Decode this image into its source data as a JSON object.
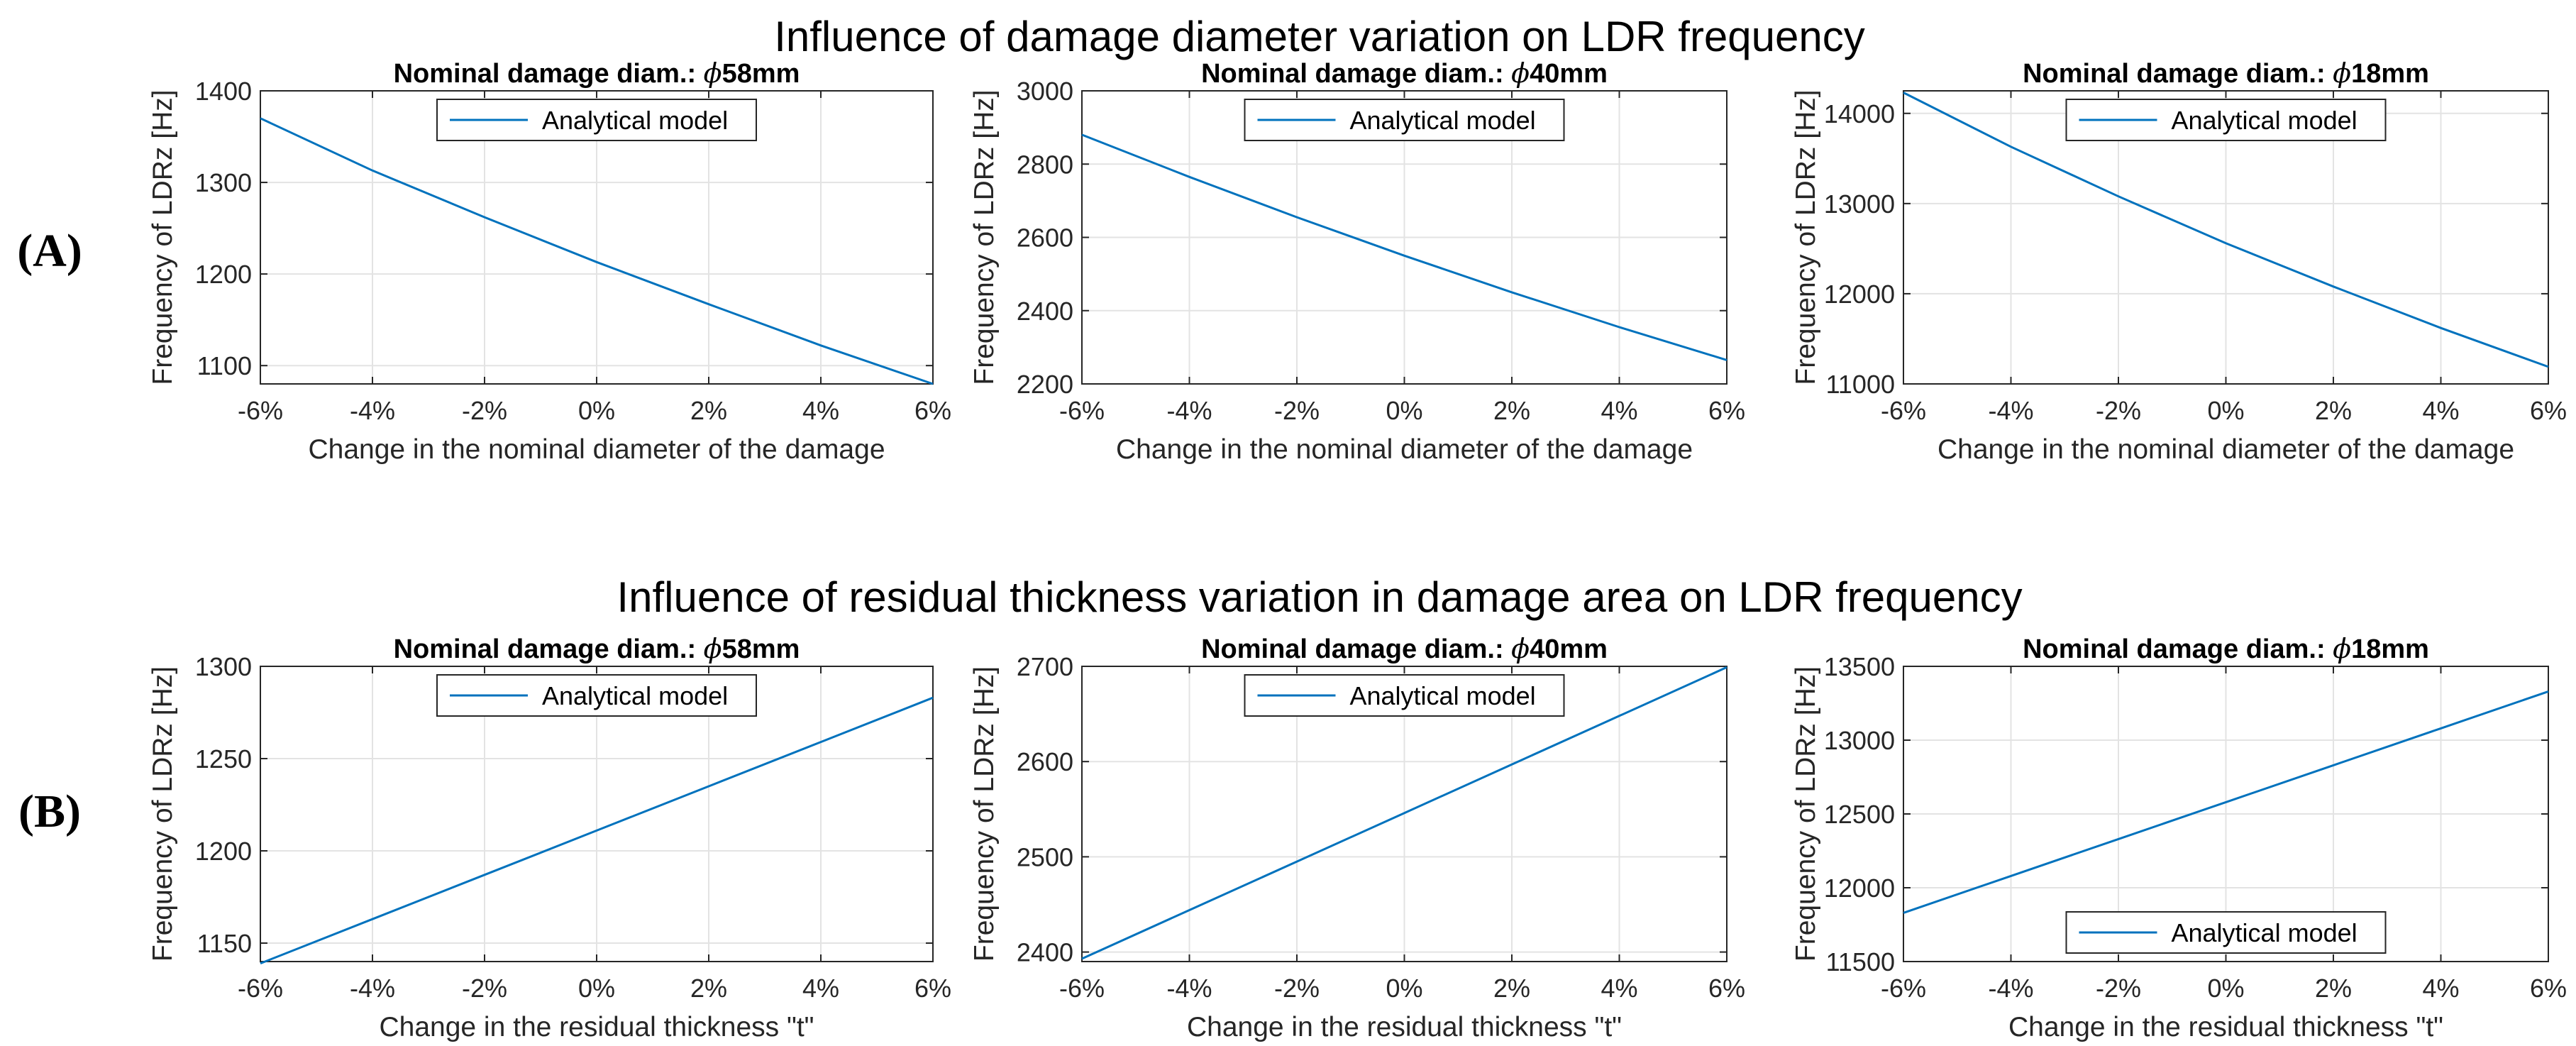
{
  "rows": [
    {
      "label": "(A)",
      "title": "Influence of damage diameter variation on LDR frequency",
      "panels": [
        {
          "title_prefix": "Nominal damage diam.: ",
          "title_symbol": "ϕ",
          "title_suffix": "58mm",
          "legend_pos": "top"
        },
        {
          "title_prefix": "Nominal damage diam.: ",
          "title_symbol": "ϕ",
          "title_suffix": "40mm",
          "legend_pos": "top"
        },
        {
          "title_prefix": "Nominal damage diam.: ",
          "title_symbol": "ϕ",
          "title_suffix": "18mm",
          "legend_pos": "top"
        }
      ]
    },
    {
      "label": "(B)",
      "title": "Influence of residual thickness variation in damage area on LDR frequency",
      "panels": [
        {
          "title_prefix": "Nominal damage diam.: ",
          "title_symbol": "ϕ",
          "title_suffix": "58mm",
          "legend_pos": "top"
        },
        {
          "title_prefix": "Nominal damage diam.: ",
          "title_symbol": "ϕ",
          "title_suffix": "40mm",
          "legend_pos": "top"
        },
        {
          "title_prefix": "Nominal damage diam.: ",
          "title_symbol": "ϕ",
          "title_suffix": "18mm",
          "legend_pos": "bottom"
        }
      ]
    }
  ],
  "colors": {
    "series": "#0072BD",
    "grid": "#e3e3e3",
    "axis": "#262626"
  },
  "chart_data": [
    {
      "type": "line",
      "title": "Nominal damage diam.: ϕ58mm",
      "xlabel": "Change in the nominal diameter of the damage",
      "ylabel": "Frequency of LDRz [Hz]",
      "xlim": [
        -6,
        6
      ],
      "ylim": [
        1080,
        1400
      ],
      "xticks": [
        -6,
        -4,
        -2,
        0,
        2,
        4,
        6
      ],
      "xtick_labels": [
        "-6%",
        "-4%",
        "-2%",
        "0%",
        "2%",
        "4%",
        "6%"
      ],
      "yticks": [
        1100,
        1200,
        1300,
        1400
      ],
      "ytick_labels": [
        "1100",
        "1200",
        "1300",
        "1400"
      ],
      "legend": [
        "Analytical model"
      ],
      "series": [
        {
          "name": "Analytical model",
          "x": [
            -6,
            -4,
            -2,
            0,
            2,
            4,
            6
          ],
          "y": [
            1370,
            1313,
            1262,
            1213,
            1167,
            1122,
            1080
          ]
        }
      ]
    },
    {
      "type": "line",
      "title": "Nominal damage diam.: ϕ40mm",
      "xlabel": "Change in the nominal diameter of the damage",
      "ylabel": "Frequency of LDRz [Hz]",
      "xlim": [
        -6,
        6
      ],
      "ylim": [
        2200,
        3000
      ],
      "xticks": [
        -6,
        -4,
        -2,
        0,
        2,
        4,
        6
      ],
      "xtick_labels": [
        "-6%",
        "-4%",
        "-2%",
        "0%",
        "2%",
        "4%",
        "6%"
      ],
      "yticks": [
        2200,
        2400,
        2600,
        2800,
        3000
      ],
      "ytick_labels": [
        "2200",
        "2400",
        "2600",
        "2800",
        "3000"
      ],
      "legend": [
        "Analytical model"
      ],
      "series": [
        {
          "name": "Analytical model",
          "x": [
            -6,
            -4,
            -2,
            0,
            2,
            4,
            6
          ],
          "y": [
            2880,
            2765,
            2655,
            2550,
            2450,
            2355,
            2265
          ]
        }
      ]
    },
    {
      "type": "line",
      "title": "Nominal damage diam.: ϕ18mm",
      "xlabel": "Change in the nominal diameter of the damage",
      "ylabel": "Frequency of LDRz [Hz]",
      "xlim": [
        -6,
        6
      ],
      "ylim": [
        11000,
        14250
      ],
      "xticks": [
        -6,
        -4,
        -2,
        0,
        2,
        4,
        6
      ],
      "xtick_labels": [
        "-6%",
        "-4%",
        "-2%",
        "0%",
        "2%",
        "4%",
        "6%"
      ],
      "yticks": [
        11000,
        12000,
        13000,
        14000
      ],
      "ytick_labels": [
        "11000",
        "12000",
        "13000",
        "14000"
      ],
      "legend": [
        "Analytical model"
      ],
      "series": [
        {
          "name": "Analytical model",
          "x": [
            -6,
            -4,
            -2,
            0,
            2,
            4,
            6
          ],
          "y": [
            14230,
            13630,
            13080,
            12560,
            12080,
            11620,
            11190
          ]
        }
      ]
    },
    {
      "type": "line",
      "title": "Nominal damage diam.: ϕ58mm",
      "xlabel": "Change in the residual thickness \"t\"",
      "ylabel": "Frequency of LDRz [Hz]",
      "xlim": [
        -6,
        6
      ],
      "ylim": [
        1140,
        1300
      ],
      "xticks": [
        -6,
        -4,
        -2,
        0,
        2,
        4,
        6
      ],
      "xtick_labels": [
        "-6%",
        "-4%",
        "-2%",
        "0%",
        "2%",
        "4%",
        "6%"
      ],
      "yticks": [
        1150,
        1200,
        1250,
        1300
      ],
      "ytick_labels": [
        "1150",
        "1200",
        "1250",
        "1300"
      ],
      "legend": [
        "Analytical model"
      ],
      "series": [
        {
          "name": "Analytical model",
          "x": [
            -6,
            -4,
            -2,
            0,
            2,
            4,
            6
          ],
          "y": [
            1139,
            1163,
            1187,
            1211,
            1235,
            1259,
            1283
          ]
        }
      ]
    },
    {
      "type": "line",
      "title": "Nominal damage diam.: ϕ40mm",
      "xlabel": "Change in the residual thickness \"t\"",
      "ylabel": "Frequency of LDRz [Hz]",
      "xlim": [
        -6,
        6
      ],
      "ylim": [
        2390,
        2700
      ],
      "xticks": [
        -6,
        -4,
        -2,
        0,
        2,
        4,
        6
      ],
      "xtick_labels": [
        "-6%",
        "-4%",
        "-2%",
        "0%",
        "2%",
        "4%",
        "6%"
      ],
      "yticks": [
        2400,
        2500,
        2600,
        2700
      ],
      "ytick_labels": [
        "2400",
        "2500",
        "2600",
        "2700"
      ],
      "legend": [
        "Analytical model"
      ],
      "series": [
        {
          "name": "Analytical model",
          "x": [
            -6,
            -4,
            -2,
            0,
            2,
            4,
            6
          ],
          "y": [
            2393,
            2444,
            2495,
            2546,
            2597,
            2648,
            2699
          ]
        }
      ]
    },
    {
      "type": "line",
      "title": "Nominal damage diam.: ϕ18mm",
      "xlabel": "Change in the residual thickness \"t\"",
      "ylabel": "Frequency of LDRz [Hz]",
      "xlim": [
        -6,
        6
      ],
      "ylim": [
        11500,
        13500
      ],
      "xticks": [
        -6,
        -4,
        -2,
        0,
        2,
        4,
        6
      ],
      "xtick_labels": [
        "-6%",
        "-4%",
        "-2%",
        "0%",
        "2%",
        "4%",
        "6%"
      ],
      "yticks": [
        11500,
        12000,
        12500,
        13000,
        13500
      ],
      "ytick_labels": [
        "11500",
        "12000",
        "12500",
        "13000",
        "13500"
      ],
      "legend": [
        "Analytical model"
      ],
      "series": [
        {
          "name": "Analytical model",
          "x": [
            -6,
            -4,
            -2,
            0,
            2,
            4,
            6
          ],
          "y": [
            11830,
            12080,
            12330,
            12580,
            12830,
            13080,
            13330
          ]
        }
      ]
    }
  ]
}
